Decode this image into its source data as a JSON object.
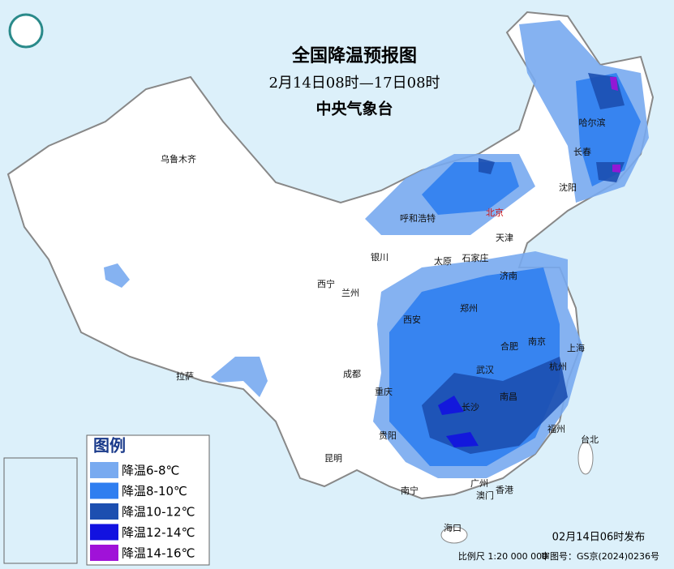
{
  "header": {
    "title": "全国降温预报图",
    "period": "2月14日08时—17日08时",
    "issuer": "中央气象台"
  },
  "legend": {
    "title": "图例",
    "items": [
      {
        "label": "降温6-8℃",
        "color": "#78aaf0"
      },
      {
        "label": "降温8-10℃",
        "color": "#2f7ef0"
      },
      {
        "label": "降温10-12℃",
        "color": "#1c4fb0"
      },
      {
        "label": "降温12-14℃",
        "color": "#1212e0"
      },
      {
        "label": "降温14-16℃",
        "color": "#a012d8"
      }
    ]
  },
  "cities": [
    "乌鲁木齐",
    "呼和浩特",
    "北京",
    "天津",
    "哈尔滨",
    "长春",
    "沈阳",
    "银川",
    "太原",
    "石家庄",
    "济南",
    "西宁",
    "兰州",
    "西安",
    "郑州",
    "合肥",
    "南京",
    "上海",
    "武汉",
    "杭州",
    "拉萨",
    "成都",
    "重庆",
    "长沙",
    "南昌",
    "贵阳",
    "福州",
    "台北",
    "昆明",
    "南宁",
    "广州",
    "澳门",
    "香港",
    "海口"
  ],
  "footer": {
    "issued": "02月14日06时发布",
    "scale": "比例尺 1:20 000 000",
    "approval": "审图号：GS京(2024)0236号"
  }
}
